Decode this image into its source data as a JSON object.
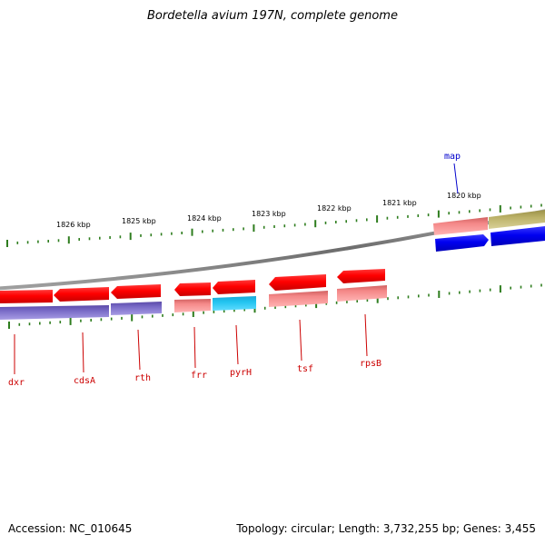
{
  "title": "Bordetella avium 197N, complete genome",
  "footer": {
    "accession": "Accession: NC_010645",
    "topology": "Topology: circular; Length: 3,732,255 bp; Genes: 3,455"
  },
  "colors": {
    "backbone": "#8c8c8c",
    "tick": "#2e7d1e",
    "forward_gene": "#0000ee",
    "reverse_gene": "#ff0000",
    "rna_pink": "#f08888",
    "cyan": "#1ec8ee",
    "purple": "#7e70c8",
    "olive": "#bdb46a",
    "label_red": "#cc0000",
    "label_blue": "#0000cc"
  },
  "scale": {
    "unit": "kbp",
    "ticks": [
      "1826 kbp",
      "1825 kbp",
      "1824 kbp",
      "1823 kbp",
      "1822 kbp",
      "1821 kbp",
      "1820 kbp"
    ]
  },
  "genes": {
    "reverse_strand": [
      "dxr",
      "cdsA",
      "rth",
      "frr",
      "pyrH",
      "tsf",
      "rpsB"
    ],
    "forward_strand": [
      "map"
    ]
  }
}
